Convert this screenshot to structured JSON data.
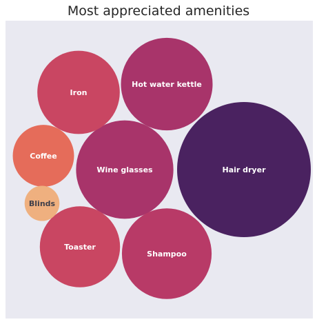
{
  "chart_data": {
    "type": "bubble",
    "title": "Most appreciated amenities",
    "xlabel": "",
    "ylabel": "",
    "grid": false,
    "legend": "none",
    "background": "#e9e9f1",
    "series": [
      {
        "name": "Hair dryer",
        "value": 100,
        "color": "#4a2260",
        "text_color": "#ffffff"
      },
      {
        "name": "Hot water kettle",
        "value": 47,
        "color": "#a8346a",
        "text_color": "#ffffff"
      },
      {
        "name": "Wine glasses",
        "value": 53,
        "color": "#a8346a",
        "text_color": "#ffffff"
      },
      {
        "name": "Shampoo",
        "value": 45,
        "color": "#b83a67",
        "text_color": "#ffffff"
      },
      {
        "name": "Iron",
        "value": 38,
        "color": "#c94662",
        "text_color": "#ffffff"
      },
      {
        "name": "Toaster",
        "value": 36,
        "color": "#c94662",
        "text_color": "#ffffff"
      },
      {
        "name": "Coffee",
        "value": 21,
        "color": "#e56c5a",
        "text_color": "#ffffff"
      },
      {
        "name": "Blinds",
        "value": 6.8,
        "color": "#efb07f",
        "text_color": "#3f3f4a"
      }
    ]
  }
}
